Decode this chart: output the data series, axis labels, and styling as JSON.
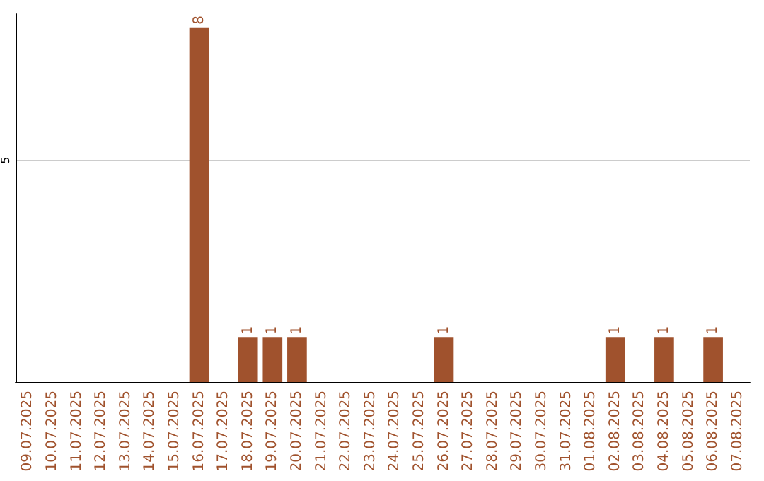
{
  "chart_data": {
    "type": "bar",
    "categories": [
      "09.07.2025",
      "10.07.2025",
      "11.07.2025",
      "12.07.2025",
      "13.07.2025",
      "14.07.2025",
      "15.07.2025",
      "16.07.2025",
      "17.07.2025",
      "18.07.2025",
      "19.07.2025",
      "20.07.2025",
      "21.07.2025",
      "22.07.2025",
      "23.07.2025",
      "24.07.2025",
      "25.07.2025",
      "26.07.2025",
      "27.07.2025",
      "28.07.2025",
      "29.07.2025",
      "30.07.2025",
      "31.07.2025",
      "01.08.2025",
      "02.08.2025",
      "03.08.2025",
      "04.08.2025",
      "05.08.2025",
      "06.08.2025",
      "07.08.2025"
    ],
    "values": [
      0,
      0,
      0,
      0,
      0,
      0,
      0,
      8,
      0,
      1,
      1,
      1,
      0,
      0,
      0,
      0,
      0,
      1,
      0,
      0,
      0,
      0,
      0,
      0,
      1,
      0,
      1,
      0,
      1,
      0
    ],
    "color": "#a0522d",
    "value_labels": [
      null,
      null,
      null,
      null,
      null,
      null,
      null,
      "8",
      null,
      "1",
      "1",
      "1",
      null,
      null,
      null,
      null,
      null,
      "1",
      null,
      null,
      null,
      null,
      null,
      null,
      "1",
      null,
      "1",
      null,
      "1",
      null
    ],
    "ylim": [
      0,
      8.3
    ],
    "yticks": [
      5
    ],
    "grid": "y"
  }
}
